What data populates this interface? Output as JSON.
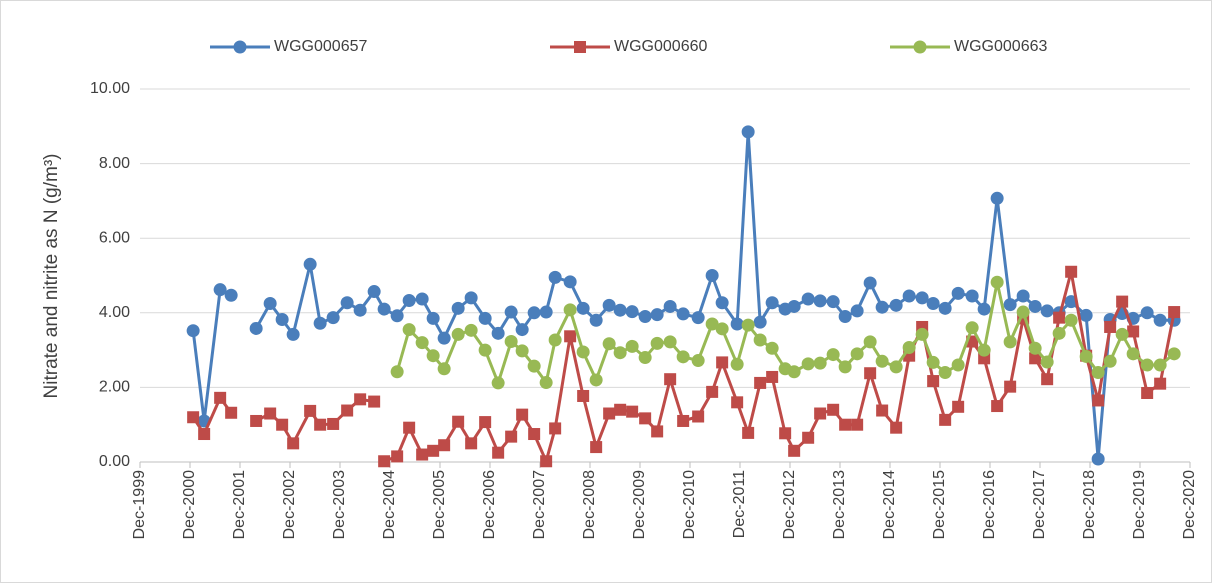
{
  "chart_data": {
    "type": "line",
    "y_label": "Nitrate and nitrite as  N (g/m³)",
    "xlim": [
      1999.917,
      2020.917
    ],
    "xticks": [
      {
        "value": 1999.917,
        "label": "Dec-1999"
      },
      {
        "value": 2000.917,
        "label": "Dec-2000"
      },
      {
        "value": 2001.917,
        "label": "Dec-2001"
      },
      {
        "value": 2002.917,
        "label": "Dec-2002"
      },
      {
        "value": 2003.917,
        "label": "Dec-2003"
      },
      {
        "value": 2004.917,
        "label": "Dec-2004"
      },
      {
        "value": 2005.917,
        "label": "Dec-2005"
      },
      {
        "value": 2006.917,
        "label": "Dec-2006"
      },
      {
        "value": 2007.917,
        "label": "Dec-2007"
      },
      {
        "value": 2008.917,
        "label": "Dec-2008"
      },
      {
        "value": 2009.917,
        "label": "Dec-2009"
      },
      {
        "value": 2010.917,
        "label": "Dec-2010"
      },
      {
        "value": 2011.917,
        "label": "Dec-2011"
      },
      {
        "value": 2012.917,
        "label": "Dec-2012"
      },
      {
        "value": 2013.917,
        "label": "Dec-2013"
      },
      {
        "value": 2014.917,
        "label": "Dec-2014"
      },
      {
        "value": 2015.917,
        "label": "Dec-2015"
      },
      {
        "value": 2016.917,
        "label": "Dec-2016"
      },
      {
        "value": 2017.917,
        "label": "Dec-2017"
      },
      {
        "value": 2018.917,
        "label": "Dec-2018"
      },
      {
        "value": 2019.917,
        "label": "Dec-2019"
      },
      {
        "value": 2020.917,
        "label": "Dec-2020"
      }
    ],
    "ylim": [
      0,
      10
    ],
    "yticks": [
      {
        "value": 0,
        "label": "0.00"
      },
      {
        "value": 2,
        "label": "2.00"
      },
      {
        "value": 4,
        "label": "4.00"
      },
      {
        "value": 6,
        "label": "6.00"
      },
      {
        "value": 8,
        "label": "8.00"
      },
      {
        "value": 10,
        "label": "10.00"
      }
    ],
    "grid": true,
    "legend": "top",
    "series": [
      {
        "name": "WGG000657",
        "color": "#4a7ebb",
        "marker": "circle",
        "x": [
          2000.98,
          2001.2,
          2001.52,
          2001.74,
          null,
          2002.24,
          2002.52,
          2002.76,
          2002.98,
          2003.32,
          2003.52,
          2003.78,
          2004.06,
          2004.32,
          2004.6,
          2004.8,
          2005.06,
          2005.3,
          2005.56,
          2005.78,
          2006.0,
          2006.28,
          2006.54,
          2006.82,
          2007.08,
          2007.34,
          2007.56,
          2007.8,
          2008.04,
          2008.22,
          2008.52,
          2008.78,
          2009.04,
          2009.3,
          2009.52,
          2009.76,
          2010.02,
          2010.26,
          2010.52,
          2010.78,
          2011.08,
          2011.36,
          2011.56,
          2011.86,
          2012.08,
          2012.32,
          2012.56,
          2012.82,
          2013.0,
          2013.28,
          2013.52,
          2013.78,
          2014.02,
          2014.26,
          2014.52,
          2014.76,
          2015.04,
          2015.3,
          2015.56,
          2015.78,
          2016.02,
          2016.28,
          2016.56,
          2016.8,
          2017.06,
          2017.32,
          2017.58,
          2017.82,
          2018.06,
          2018.3,
          2018.54,
          2018.84,
          2019.08,
          2019.32,
          2019.56,
          2019.78,
          2020.06,
          2020.32,
          2020.6
        ],
        "values": [
          3.52,
          1.1,
          4.62,
          4.47,
          null,
          3.58,
          4.25,
          3.82,
          3.42,
          5.3,
          3.72,
          3.87,
          4.27,
          4.07,
          4.57,
          4.1,
          3.92,
          4.33,
          4.37,
          3.85,
          3.32,
          4.12,
          4.4,
          3.85,
          3.45,
          4.02,
          3.55,
          4.0,
          4.02,
          4.95,
          4.83,
          4.12,
          3.8,
          4.2,
          4.07,
          4.03,
          3.9,
          3.95,
          4.17,
          3.97,
          3.87,
          5.0,
          4.27,
          3.7,
          8.85,
          3.75,
          4.27,
          4.1,
          4.17,
          4.37,
          4.32,
          4.3,
          3.9,
          4.05,
          4.8,
          4.15,
          4.2,
          4.45,
          4.4,
          4.25,
          4.12,
          4.52,
          4.45,
          4.1,
          7.07,
          4.22,
          4.45,
          4.17,
          4.05,
          4.0,
          4.3,
          3.93,
          0.08,
          3.82,
          3.98,
          3.85,
          4.0,
          3.8,
          3.8
        ]
      },
      {
        "name": "WGG000660",
        "color": "#be4b48",
        "marker": "square",
        "x": [
          2000.98,
          2001.2,
          2001.52,
          2001.74,
          null,
          2002.24,
          2002.52,
          2002.76,
          2002.98,
          2003.32,
          2003.52,
          2003.78,
          2004.06,
          2004.32,
          2004.6,
          null,
          2004.8,
          2005.06,
          2005.3,
          2005.56,
          2005.78,
          2006.0,
          2006.28,
          2006.54,
          2006.82,
          2007.08,
          2007.34,
          2007.56,
          2007.8,
          2008.04,
          2008.22,
          2008.52,
          2008.78,
          2009.04,
          2009.3,
          2009.52,
          2009.76,
          2010.02,
          2010.26,
          2010.52,
          2010.78,
          2011.08,
          2011.36,
          2011.56,
          2011.86,
          2012.08,
          2012.32,
          2012.56,
          2012.82,
          2013.0,
          2013.28,
          2013.52,
          2013.78,
          2014.02,
          2014.26,
          2014.52,
          2014.76,
          2015.04,
          2015.3,
          2015.56,
          2015.78,
          2016.02,
          2016.28,
          2016.56,
          2016.8,
          2017.06,
          2017.32,
          2017.58,
          2017.82,
          2018.06,
          2018.3,
          2018.54,
          2018.84,
          2019.08,
          2019.32,
          2019.56,
          2019.78,
          2020.06,
          2020.32,
          2020.6
        ],
        "values": [
          1.2,
          0.75,
          1.72,
          1.32,
          null,
          1.1,
          1.3,
          1.0,
          0.5,
          1.37,
          1.0,
          1.02,
          1.38,
          1.68,
          1.62,
          null,
          0.02,
          0.15,
          0.92,
          0.2,
          0.3,
          0.45,
          1.08,
          0.5,
          1.07,
          0.25,
          0.68,
          1.27,
          0.75,
          0.02,
          0.9,
          3.37,
          1.77,
          0.4,
          1.3,
          1.4,
          1.35,
          1.17,
          0.82,
          2.22,
          1.1,
          1.22,
          1.88,
          2.67,
          1.6,
          0.78,
          2.12,
          2.28,
          0.77,
          0.3,
          0.65,
          1.3,
          1.4,
          1.0,
          1.0,
          2.38,
          1.38,
          0.92,
          2.85,
          3.62,
          2.17,
          1.13,
          1.48,
          3.23,
          2.78,
          1.5,
          2.02,
          3.85,
          2.78,
          2.22,
          3.87,
          5.1,
          2.85,
          1.65,
          3.62,
          4.3,
          3.5,
          1.85,
          2.1,
          4.02
        ]
      },
      {
        "name": "WGG000663",
        "color": "#98b954",
        "marker": "circle",
        "x": [
          2005.06,
          2005.3,
          2005.56,
          2005.78,
          2006.0,
          2006.28,
          2006.54,
          2006.82,
          2007.08,
          2007.34,
          2007.56,
          2007.8,
          2008.04,
          2008.22,
          2008.52,
          2008.78,
          2009.04,
          2009.3,
          2009.52,
          2009.76,
          2010.02,
          2010.26,
          2010.52,
          2010.78,
          2011.08,
          2011.36,
          2011.56,
          2011.86,
          2012.08,
          2012.32,
          2012.56,
          2012.82,
          2013.0,
          2013.28,
          2013.52,
          2013.78,
          2014.02,
          2014.26,
          2014.52,
          2014.76,
          2015.04,
          2015.3,
          2015.56,
          2015.78,
          2016.02,
          2016.28,
          2016.56,
          2016.8,
          2017.06,
          2017.32,
          2017.58,
          2017.82,
          2018.06,
          2018.3,
          2018.54,
          2018.84,
          2019.08,
          2019.32,
          2019.56,
          2019.78,
          2020.06,
          2020.32,
          2020.6
        ],
        "values": [
          2.42,
          3.55,
          3.2,
          2.85,
          2.5,
          3.42,
          3.53,
          3.0,
          2.12,
          3.23,
          2.98,
          2.57,
          2.13,
          3.27,
          4.08,
          2.95,
          2.2,
          3.17,
          2.93,
          3.1,
          2.8,
          3.18,
          3.22,
          2.82,
          2.72,
          3.7,
          3.57,
          2.62,
          3.67,
          3.27,
          3.05,
          2.5,
          2.42,
          2.63,
          2.65,
          2.88,
          2.55,
          2.9,
          3.22,
          2.7,
          2.55,
          3.07,
          3.42,
          2.67,
          2.4,
          2.6,
          3.6,
          3.0,
          4.82,
          3.22,
          4.02,
          3.05,
          2.68,
          3.45,
          3.8,
          2.83,
          2.4,
          2.7,
          3.42,
          2.9,
          2.6,
          2.6,
          2.9
        ]
      }
    ]
  }
}
